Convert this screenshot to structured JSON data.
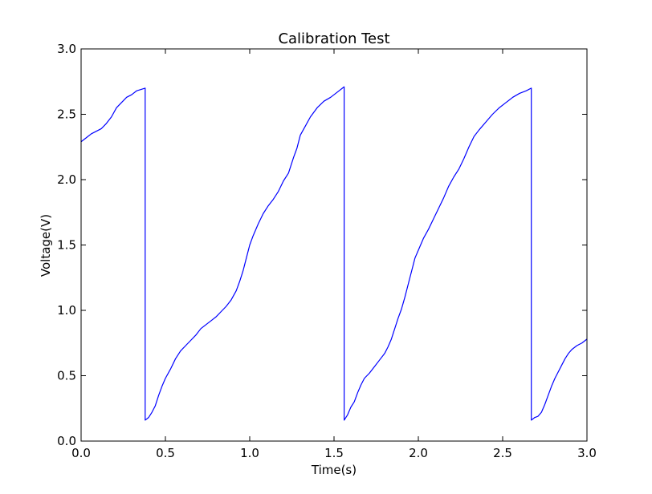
{
  "chart_data": {
    "type": "line",
    "title": "Calibration Test",
    "xlabel": "Time(s)",
    "ylabel": "Voltage(V)",
    "xlim": [
      0.0,
      3.0
    ],
    "ylim": [
      0.0,
      3.0
    ],
    "xticks": [
      0.0,
      0.5,
      1.0,
      1.5,
      2.0,
      2.5,
      3.0
    ],
    "xtick_labels": [
      "0.0",
      "0.5",
      "1.0",
      "1.5",
      "2.0",
      "2.5",
      "3.0"
    ],
    "yticks": [
      0.0,
      0.5,
      1.0,
      1.5,
      2.0,
      2.5,
      3.0
    ],
    "ytick_labels": [
      "0.0",
      "0.5",
      "1.0",
      "1.5",
      "2.0",
      "2.5",
      "3.0"
    ],
    "grid": false,
    "series": [
      {
        "color": "#0000ff",
        "points": [
          [
            0.0,
            2.29
          ],
          [
            0.03,
            2.32
          ],
          [
            0.06,
            2.35
          ],
          [
            0.09,
            2.37
          ],
          [
            0.12,
            2.39
          ],
          [
            0.15,
            2.43
          ],
          [
            0.18,
            2.48
          ],
          [
            0.21,
            2.55
          ],
          [
            0.24,
            2.59
          ],
          [
            0.27,
            2.63
          ],
          [
            0.3,
            2.65
          ],
          [
            0.33,
            2.68
          ],
          [
            0.38,
            2.7
          ],
          [
            0.38,
            0.16
          ],
          [
            0.4,
            0.18
          ],
          [
            0.42,
            0.22
          ],
          [
            0.44,
            0.27
          ],
          [
            0.46,
            0.35
          ],
          [
            0.48,
            0.42
          ],
          [
            0.5,
            0.48
          ],
          [
            0.53,
            0.55
          ],
          [
            0.56,
            0.63
          ],
          [
            0.59,
            0.69
          ],
          [
            0.62,
            0.73
          ],
          [
            0.65,
            0.77
          ],
          [
            0.68,
            0.81
          ],
          [
            0.71,
            0.86
          ],
          [
            0.74,
            0.89
          ],
          [
            0.77,
            0.92
          ],
          [
            0.8,
            0.95
          ],
          [
            0.83,
            0.99
          ],
          [
            0.86,
            1.03
          ],
          [
            0.89,
            1.08
          ],
          [
            0.92,
            1.15
          ],
          [
            0.94,
            1.22
          ],
          [
            0.96,
            1.3
          ],
          [
            0.98,
            1.4
          ],
          [
            1.0,
            1.5
          ],
          [
            1.02,
            1.57
          ],
          [
            1.05,
            1.66
          ],
          [
            1.08,
            1.74
          ],
          [
            1.11,
            1.8
          ],
          [
            1.14,
            1.85
          ],
          [
            1.17,
            1.91
          ],
          [
            1.2,
            1.99
          ],
          [
            1.23,
            2.05
          ],
          [
            1.26,
            2.17
          ],
          [
            1.28,
            2.24
          ],
          [
            1.3,
            2.34
          ],
          [
            1.33,
            2.41
          ],
          [
            1.36,
            2.48
          ],
          [
            1.4,
            2.55
          ],
          [
            1.44,
            2.6
          ],
          [
            1.48,
            2.63
          ],
          [
            1.52,
            2.67
          ],
          [
            1.56,
            2.71
          ],
          [
            1.56,
            0.16
          ],
          [
            1.58,
            0.2
          ],
          [
            1.6,
            0.26
          ],
          [
            1.62,
            0.3
          ],
          [
            1.64,
            0.37
          ],
          [
            1.66,
            0.43
          ],
          [
            1.68,
            0.48
          ],
          [
            1.71,
            0.52
          ],
          [
            1.74,
            0.57
          ],
          [
            1.77,
            0.62
          ],
          [
            1.8,
            0.67
          ],
          [
            1.82,
            0.72
          ],
          [
            1.84,
            0.78
          ],
          [
            1.86,
            0.86
          ],
          [
            1.88,
            0.94
          ],
          [
            1.9,
            1.01
          ],
          [
            1.92,
            1.1
          ],
          [
            1.94,
            1.2
          ],
          [
            1.96,
            1.3
          ],
          [
            1.98,
            1.4
          ],
          [
            2.0,
            1.46
          ],
          [
            2.03,
            1.55
          ],
          [
            2.06,
            1.62
          ],
          [
            2.09,
            1.7
          ],
          [
            2.12,
            1.78
          ],
          [
            2.15,
            1.86
          ],
          [
            2.18,
            1.95
          ],
          [
            2.21,
            2.02
          ],
          [
            2.24,
            2.08
          ],
          [
            2.27,
            2.16
          ],
          [
            2.3,
            2.25
          ],
          [
            2.33,
            2.33
          ],
          [
            2.36,
            2.38
          ],
          [
            2.4,
            2.44
          ],
          [
            2.44,
            2.5
          ],
          [
            2.48,
            2.55
          ],
          [
            2.52,
            2.59
          ],
          [
            2.56,
            2.63
          ],
          [
            2.6,
            2.66
          ],
          [
            2.64,
            2.68
          ],
          [
            2.67,
            2.7
          ],
          [
            2.67,
            0.16
          ],
          [
            2.69,
            0.18
          ],
          [
            2.71,
            0.19
          ],
          [
            2.73,
            0.22
          ],
          [
            2.75,
            0.28
          ],
          [
            2.77,
            0.35
          ],
          [
            2.79,
            0.42
          ],
          [
            2.81,
            0.48
          ],
          [
            2.83,
            0.53
          ],
          [
            2.85,
            0.58
          ],
          [
            2.87,
            0.63
          ],
          [
            2.89,
            0.67
          ],
          [
            2.91,
            0.7
          ],
          [
            2.94,
            0.73
          ],
          [
            2.97,
            0.75
          ],
          [
            3.0,
            0.78
          ]
        ]
      }
    ]
  }
}
